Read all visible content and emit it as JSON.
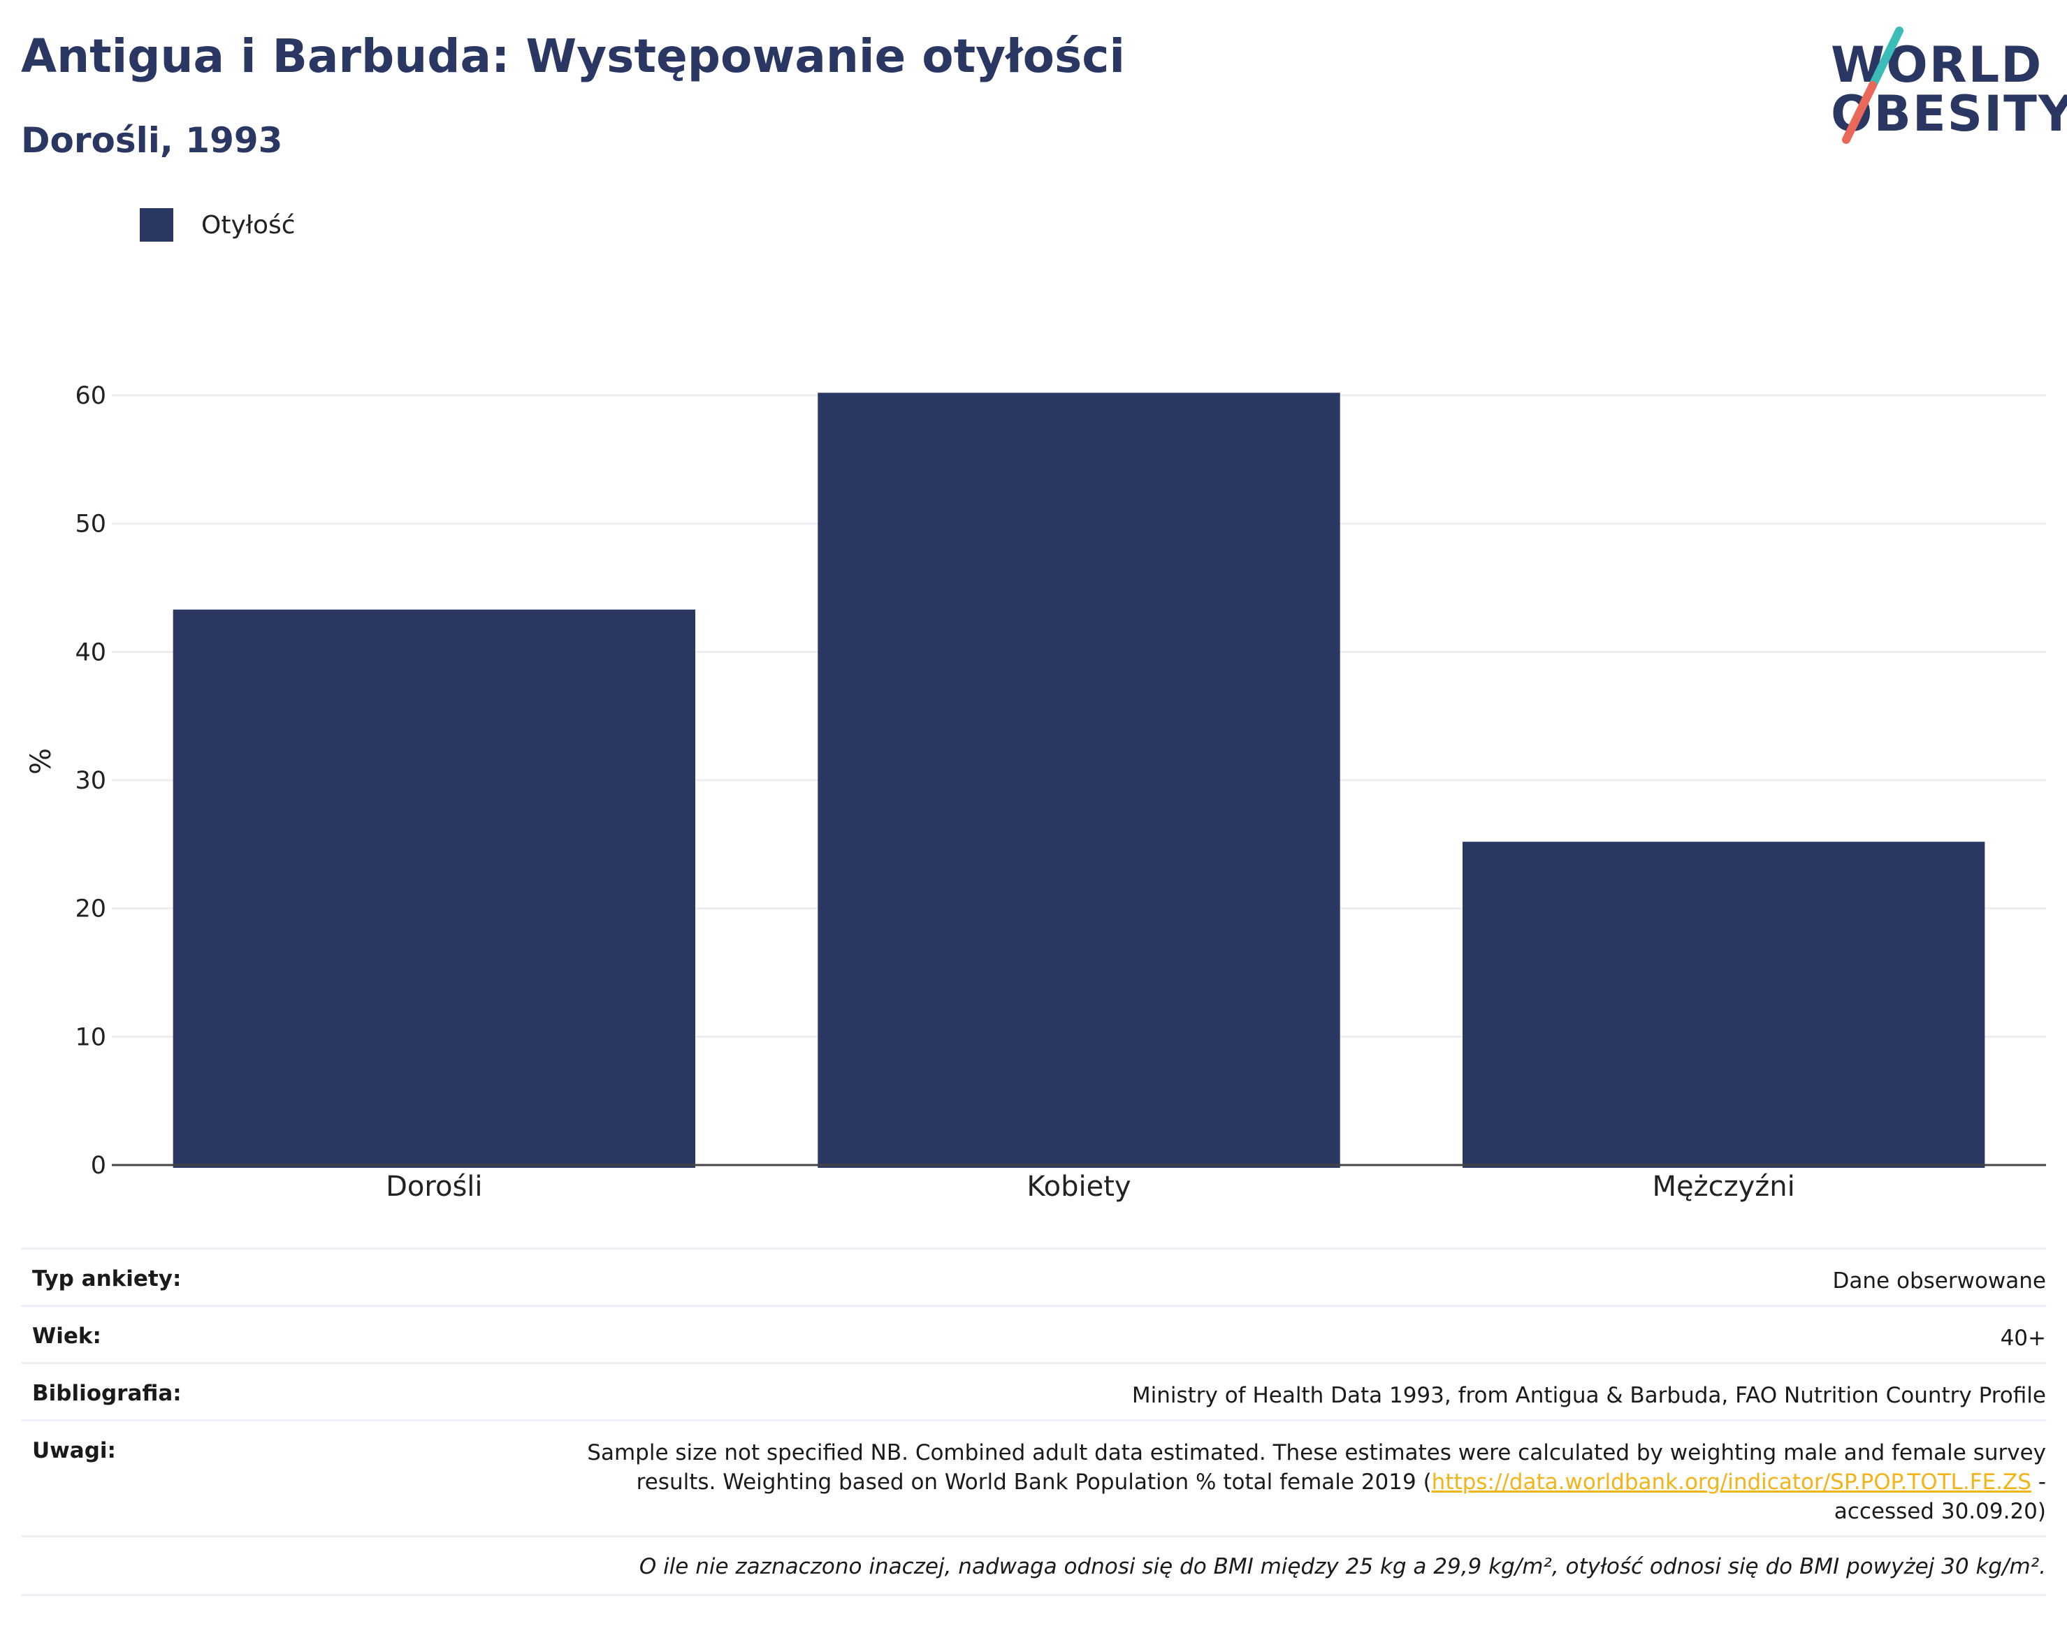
{
  "header": {
    "title": "Antigua i Barbuda: Występowanie otyłości",
    "subtitle": "Dorośli, 1993"
  },
  "logo": {
    "line1": "WORLD",
    "line2": "OBESITY",
    "colors": {
      "text": "#2b3763",
      "slash_top": "#3bbcb8",
      "slash_bottom": "#e8685a"
    }
  },
  "legend": {
    "items": [
      {
        "label": "Otyłość",
        "color": "#2b3763"
      }
    ]
  },
  "chart_data": {
    "type": "bar",
    "categories": [
      "Dorośli",
      "Kobiety",
      "Mężczyźni"
    ],
    "series": [
      {
        "name": "Otyłość",
        "values": [
          43.3,
          60.2,
          25.2
        ],
        "color": "#2b3763"
      }
    ],
    "title": "",
    "xlabel": "",
    "ylabel": "%",
    "ylim": [
      0,
      62
    ],
    "yticks": [
      0,
      10,
      20,
      30,
      40,
      50,
      60
    ],
    "grid": true,
    "legend_position": "top-left"
  },
  "info": {
    "survey_type": {
      "label": "Typ ankiety:",
      "value": "Dane obserwowane"
    },
    "age": {
      "label": "Wiek:",
      "value": "40+"
    },
    "bibliography": {
      "label": "Bibliografia:",
      "value": "Ministry of Health Data 1993, from Antigua & Barbuda, FAO Nutrition Country Profile"
    },
    "notes": {
      "label": "Uwagi:",
      "text_before": "Sample size not specified NB. Combined adult data estimated. These estimates were calculated by weighting male and female survey results. Weighting based on World Bank Population % total female 2019 (",
      "link": "https://data.worldbank.org/indicator/SP.POP.TOTL.FE.ZS",
      "text_after": " - accessed 30.09.20)"
    },
    "footnote": "O ile nie zaznaczono inaczej, nadwaga odnosi się do BMI między 25 kg a 29,9 kg/m², otyłość odnosi się do BMI powyżej 30 kg/m²."
  }
}
